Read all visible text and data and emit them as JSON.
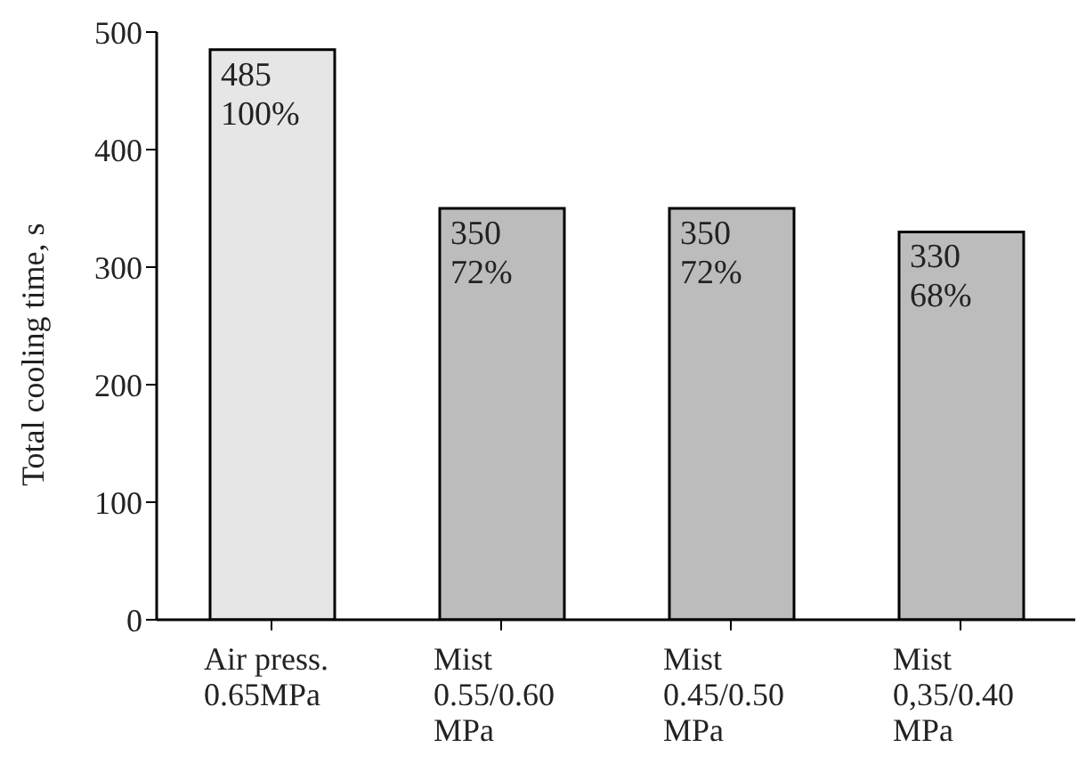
{
  "chart_data": {
    "type": "bar",
    "ylabel": "Total cooling time, s",
    "categories": [
      "Air press.\n0.65MPa",
      "Mist\n0.55/0.60\nMPa",
      "Mist\n0.45/0.50\nMPa",
      "Mist\n0,35/0.40\nMPa"
    ],
    "values": [
      485,
      350,
      350,
      330
    ],
    "colors": [
      "#e6e6e6",
      "#bcbcbc",
      "#bcbcbc",
      "#bcbcbc"
    ],
    "data_labels": true,
    "annotations": [
      {
        "text": "100%",
        "x": "Air press.\n0.65MPa",
        "y": 485
      },
      {
        "text": "72%",
        "x": "Mist\n0.55/0.60\nMPa",
        "y": 350
      },
      {
        "text": "72%",
        "x": "Mist\n0.45/0.50\nMPa",
        "y": 350
      },
      {
        "text": "68%",
        "x": "Mist\n0,35/0.40\nMPa",
        "y": 330
      }
    ],
    "ylim": [
      0,
      500
    ],
    "yticks": [
      0,
      100,
      200,
      300,
      400,
      500
    ],
    "grid": false
  }
}
